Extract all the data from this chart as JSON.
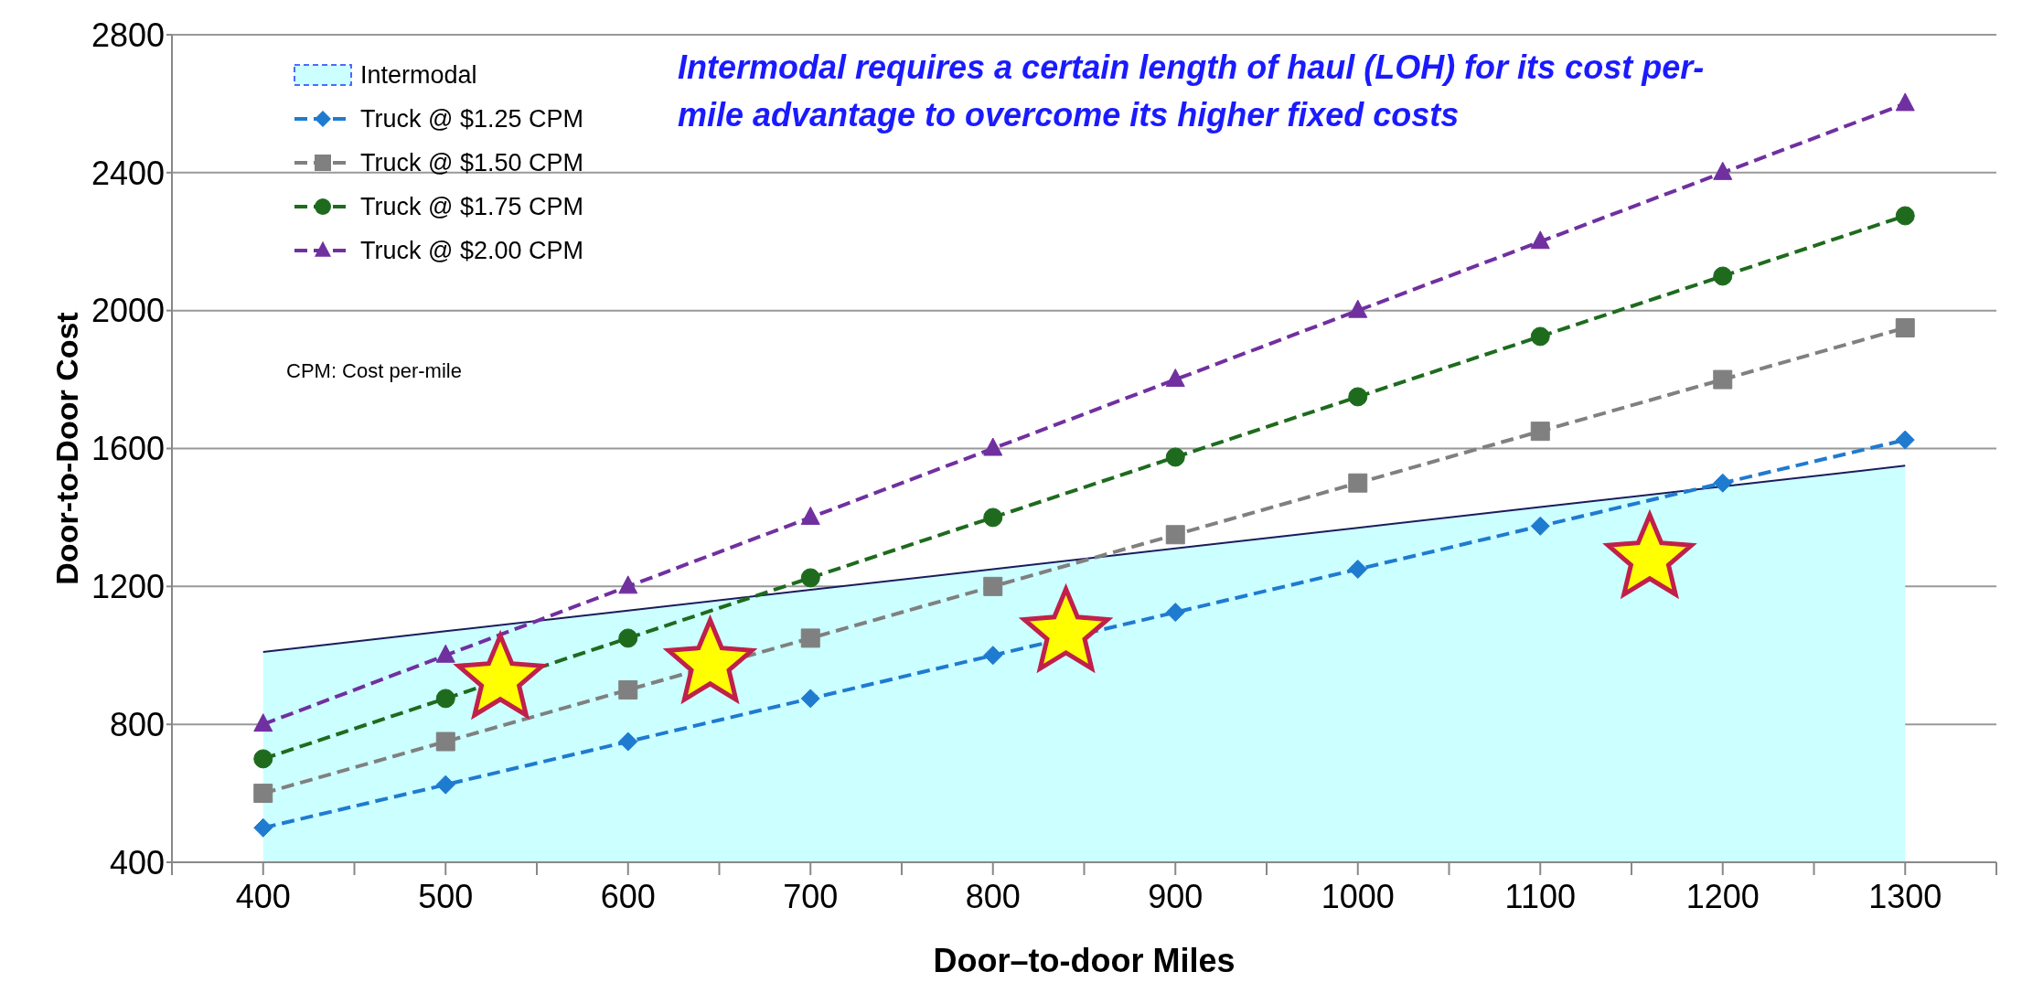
{
  "chart_data": {
    "type": "line",
    "xlabel": "Door–to-door Miles",
    "ylabel": "Door-to-Door Cost",
    "x": [
      400,
      500,
      600,
      700,
      800,
      900,
      1000,
      1100,
      1200,
      1300
    ],
    "xlim": [
      350,
      1350
    ],
    "xticks": [
      {
        "value": 350,
        "label": null
      },
      {
        "value": 400,
        "label": "400"
      },
      {
        "value": 450,
        "label": null
      },
      {
        "value": 500,
        "label": "500"
      },
      {
        "value": 550,
        "label": null
      },
      {
        "value": 600,
        "label": "600"
      },
      {
        "value": 650,
        "label": null
      },
      {
        "value": 700,
        "label": "700"
      },
      {
        "value": 750,
        "label": null
      },
      {
        "value": 800,
        "label": "800"
      },
      {
        "value": 850,
        "label": null
      },
      {
        "value": 900,
        "label": "900"
      },
      {
        "value": 950,
        "label": null
      },
      {
        "value": 1000,
        "label": "1000"
      },
      {
        "value": 1050,
        "label": null
      },
      {
        "value": 1100,
        "label": "1100"
      },
      {
        "value": 1150,
        "label": null
      },
      {
        "value": 1200,
        "label": "1200"
      },
      {
        "value": 1250,
        "label": null
      },
      {
        "value": 1300,
        "label": "1300"
      },
      {
        "value": 1350,
        "label": null
      }
    ],
    "ylim": [
      400,
      2800
    ],
    "yticks": [
      400,
      800,
      1200,
      1600,
      2000,
      2400,
      2800
    ],
    "grid": "y",
    "legend": "top left",
    "series": [
      {
        "name": "Intermodal",
        "type": "area",
        "color": "#ccffff",
        "values": [
          1010,
          1070,
          1130,
          1190,
          1250,
          1310,
          1370,
          1430,
          1490,
          1550
        ]
      },
      {
        "name": "Truck @ $1.25 CPM",
        "color": "#1f7bd0",
        "marker": "diamond",
        "line_style": "dashed",
        "values": [
          500,
          625,
          750,
          875,
          1000,
          1125,
          1250,
          1375,
          1500,
          1625
        ]
      },
      {
        "name": "Truck @ $1.50 CPM",
        "color": "#808080",
        "marker": "square",
        "line_style": "dashed",
        "values": [
          600,
          750,
          900,
          1050,
          1200,
          1350,
          1500,
          1650,
          1800,
          1950
        ]
      },
      {
        "name": "Truck @ $1.75 CPM",
        "color": "#1e6b1e",
        "marker": "circle",
        "line_style": "dashed",
        "values": [
          700,
          875,
          1050,
          1225,
          1400,
          1575,
          1750,
          1925,
          2100,
          2275
        ]
      },
      {
        "name": "Truck @ $2.00 CPM",
        "color": "#7030a0",
        "marker": "triangle",
        "line_style": "dashed",
        "values": [
          800,
          1000,
          1200,
          1400,
          1600,
          1800,
          2000,
          2200,
          2400,
          2600
        ]
      }
    ],
    "annotations": [
      "Intermodal requires a certain length of haul (LOH) for its cost per-mile advantage to overcome its higher fixed costs",
      "CPM: Cost per-mile"
    ]
  }
}
